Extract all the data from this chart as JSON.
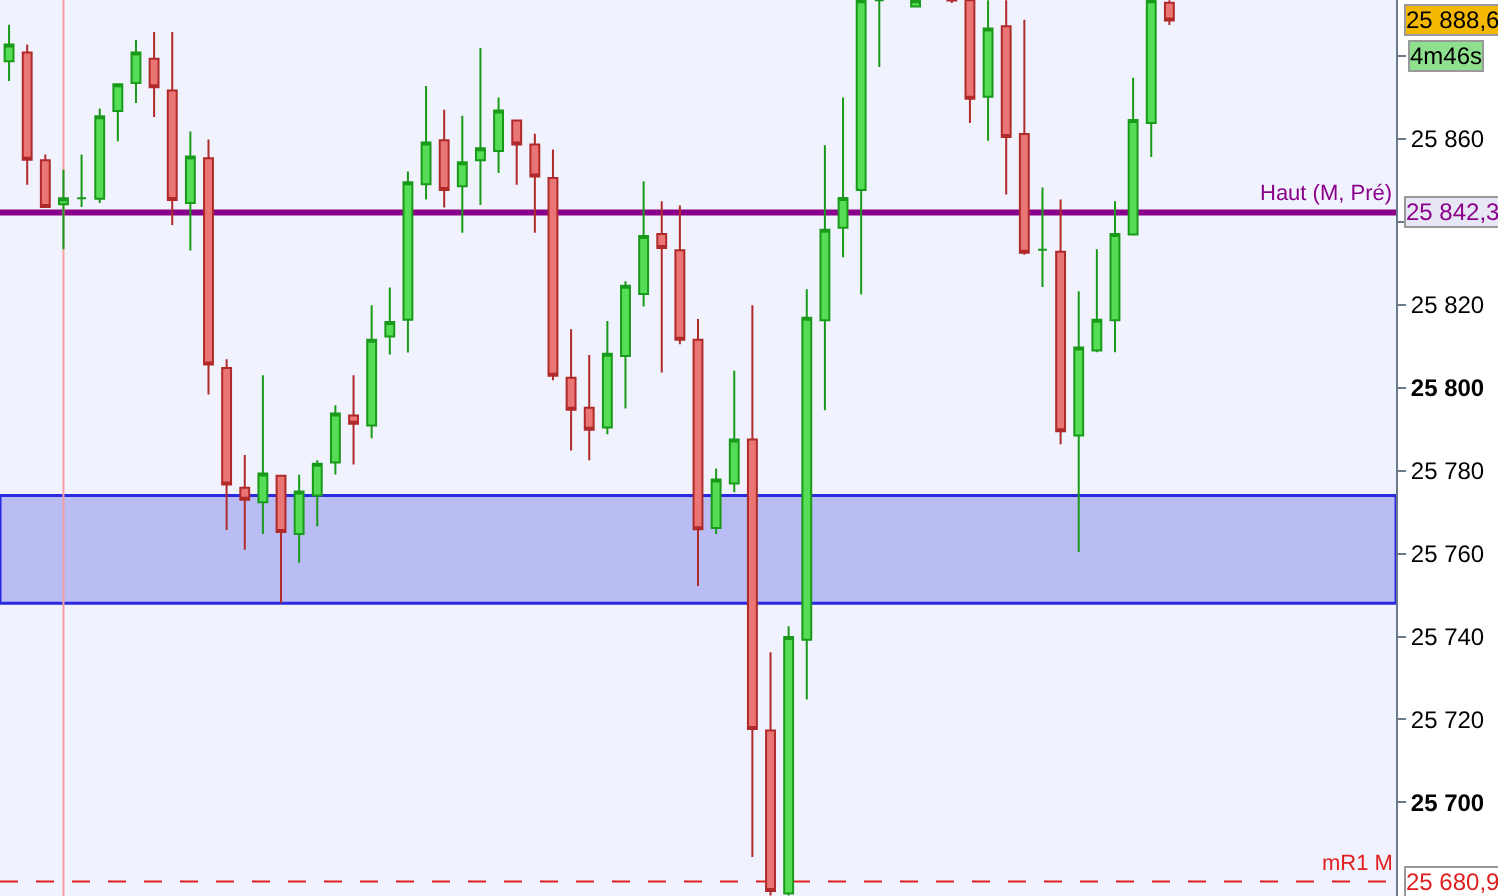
{
  "chart_data": {
    "type": "candlestick",
    "categories": [
      null,
      null,
      null,
      null,
      null,
      null,
      null,
      null,
      null,
      null,
      null,
      null,
      null,
      null,
      null,
      null,
      null,
      null,
      null,
      null,
      null,
      null,
      null,
      null,
      null,
      null,
      null,
      null,
      null,
      null,
      null,
      null,
      null,
      null,
      null,
      null,
      null,
      null,
      null,
      null,
      null,
      null,
      null,
      null,
      null,
      null,
      null,
      null,
      null,
      null,
      null,
      null,
      null,
      null,
      null,
      null,
      null,
      null,
      null,
      null,
      null,
      null,
      null,
      null,
      null,
      null,
      null,
      null,
      null,
      null,
      null,
      null,
      null,
      null,
      null,
      null,
      null
    ],
    "ohlc": [
      [
        25878.8,
        25887.6,
        25874.0,
        25882.8
      ],
      [
        25880.9,
        25882.8,
        25849.0,
        25855.0
      ],
      [
        25854.9,
        25856.3,
        25843.6,
        25843.6
      ],
      [
        25844.3,
        25852.6,
        25833.4,
        25845.7
      ],
      [
        25845.7,
        25856.3,
        25843.6,
        25845.7
      ],
      [
        25845.6,
        25867.4,
        25844.6,
        25865.5
      ],
      [
        25866.8,
        25873.2,
        25859.5,
        25873.2
      ],
      [
        25873.5,
        25883.9,
        25868.7,
        25880.9
      ],
      [
        25879.4,
        25885.8,
        25865.3,
        25872.5
      ],
      [
        25871.7,
        25885.8,
        25839.3,
        25845.3
      ],
      [
        25844.6,
        25861.8,
        25833.1,
        25855.8
      ],
      [
        25855.4,
        25859.9,
        25798.4,
        25805.6
      ],
      [
        25804.8,
        25806.9,
        25765.7,
        25776.7
      ],
      [
        25775.9,
        25783.8,
        25760.9,
        25773.0
      ],
      [
        25772.4,
        25803.0,
        25764.7,
        25779.3
      ],
      [
        25778.8,
        25778.8,
        25748.0,
        25765.2
      ],
      [
        25764.7,
        25779.0,
        25757.8,
        25775.0
      ],
      [
        25774.0,
        25782.5,
        25766.6,
        25781.7
      ],
      [
        25782.0,
        25795.8,
        25779.1,
        25793.8
      ],
      [
        25793.3,
        25803.0,
        25781.5,
        25791.3
      ],
      [
        25790.9,
        25819.9,
        25787.8,
        25811.6
      ],
      [
        25812.4,
        25824.2,
        25808.0,
        25815.9
      ],
      [
        25816.4,
        25852.2,
        25808.5,
        25849.6
      ],
      [
        25849.1,
        25872.8,
        25845.4,
        25859.2
      ],
      [
        25859.7,
        25867.1,
        25843.5,
        25847.7
      ],
      [
        25848.6,
        25865.6,
        25837.4,
        25854.4
      ],
      [
        25854.9,
        25882.0,
        25844.1,
        25857.8
      ],
      [
        25857.1,
        25870.0,
        25851.8,
        25866.9
      ],
      [
        25864.5,
        25864.5,
        25849.0,
        25858.7
      ],
      [
        25858.7,
        25861.3,
        25837.4,
        25851.0
      ],
      [
        25850.6,
        25857.5,
        25801.8,
        25802.9
      ],
      [
        25802.4,
        25814.1,
        25784.9,
        25794.7
      ],
      [
        25795.2,
        25807.9,
        25782.5,
        25789.9
      ],
      [
        25790.4,
        25816.1,
        25788.8,
        25808.2
      ],
      [
        25807.7,
        25825.7,
        25795.0,
        25824.6
      ],
      [
        25822.6,
        25849.8,
        25819.6,
        25836.6
      ],
      [
        25837.1,
        25845.0,
        25803.7,
        25833.7
      ],
      [
        25833.2,
        25844.0,
        25810.5,
        25811.6
      ],
      [
        25811.6,
        25816.6,
        25752.2,
        25765.9
      ],
      [
        25766.2,
        25780.5,
        25764.7,
        25777.9
      ],
      [
        25776.9,
        25804.1,
        25774.8,
        25787.5
      ],
      [
        25787.5,
        25819.9,
        25686.8,
        25717.7
      ],
      [
        25717.3,
        25736.2,
        25677.5,
        25678.6
      ],
      [
        25678.0,
        25742.5,
        25677.5,
        25739.9
      ],
      [
        25739.2,
        25823.8,
        25724.8,
        25816.9
      ],
      [
        25816.3,
        25858.5,
        25794.6,
        25838.1
      ],
      [
        25838.6,
        25870.0,
        25831.5,
        25845.8
      ],
      [
        25847.7,
        25893.5,
        25822.5,
        25893.5
      ],
      [
        25893.5,
        25893.5,
        25877.4,
        25893.5
      ],
      null,
      [
        25892.0,
        25893.5,
        25892.0,
        25893.5
      ],
      null,
      [
        25893.5,
        25893.5,
        25892.8,
        25893.4
      ],
      [
        25893.5,
        25893.5,
        25863.9,
        25869.7
      ],
      [
        25870.2,
        25893.5,
        25859.6,
        25886.7
      ],
      [
        25887.2,
        25893.5,
        25846.6,
        25860.5
      ],
      [
        25861.2,
        25888.8,
        25832.1,
        25832.6
      ],
      [
        25833.3,
        25848.3,
        25824.3,
        25833.3
      ],
      [
        25832.8,
        25845.4,
        25786.4,
        25789.5
      ],
      [
        25788.5,
        25823.3,
        25760.4,
        25809.7
      ],
      [
        25809.0,
        25833.4,
        25808.6,
        25816.4
      ],
      [
        25816.3,
        25845.0,
        25808.6,
        25837.1
      ],
      [
        25837.0,
        25874.8,
        25837.0,
        25864.6
      ],
      [
        25863.9,
        25893.5,
        25855.7,
        25893.5
      ],
      [
        25892.9,
        25893.5,
        25887.5,
        25888.6
      ],
      null,
      null,
      null,
      null,
      null,
      null,
      null,
      null,
      null,
      null,
      null,
      null
    ],
    "ylim": [
      25677.4,
      25893.55
    ],
    "yticks": [
      {
        "value": 25700,
        "label": "25 700"
      },
      {
        "value": 25720,
        "label": "25 720"
      },
      {
        "value": 25740,
        "label": "25 740"
      },
      {
        "value": 25760,
        "label": "25 760"
      },
      {
        "value": 25780,
        "label": "25 780"
      },
      {
        "value": 25800,
        "label": "25 800"
      },
      {
        "value": 25820,
        "label": "25 820"
      },
      {
        "value": 25840,
        "label": null
      },
      {
        "value": 25860,
        "label": "25 860"
      },
      {
        "value": 25880,
        "label": null
      }
    ],
    "tick_labels": "y",
    "grid": false,
    "legend": false,
    "ref_lines": [
      {
        "axis": "y",
        "value": 25842.3,
        "label": "Haut (M, Pré)",
        "color": "#8b008b",
        "line_style": "solid"
      },
      {
        "axis": "y",
        "value": 25680.9,
        "label": "mR1 M",
        "color": "#e02020",
        "line_style": "dashed"
      }
    ],
    "bands": [
      {
        "axis": "y",
        "from": 25748,
        "to": 25774,
        "color": "#b9bdf3"
      }
    ],
    "annotations": [
      "25 888,6",
      "4m46s",
      "25 842,3",
      "25 680,9"
    ]
  }
}
